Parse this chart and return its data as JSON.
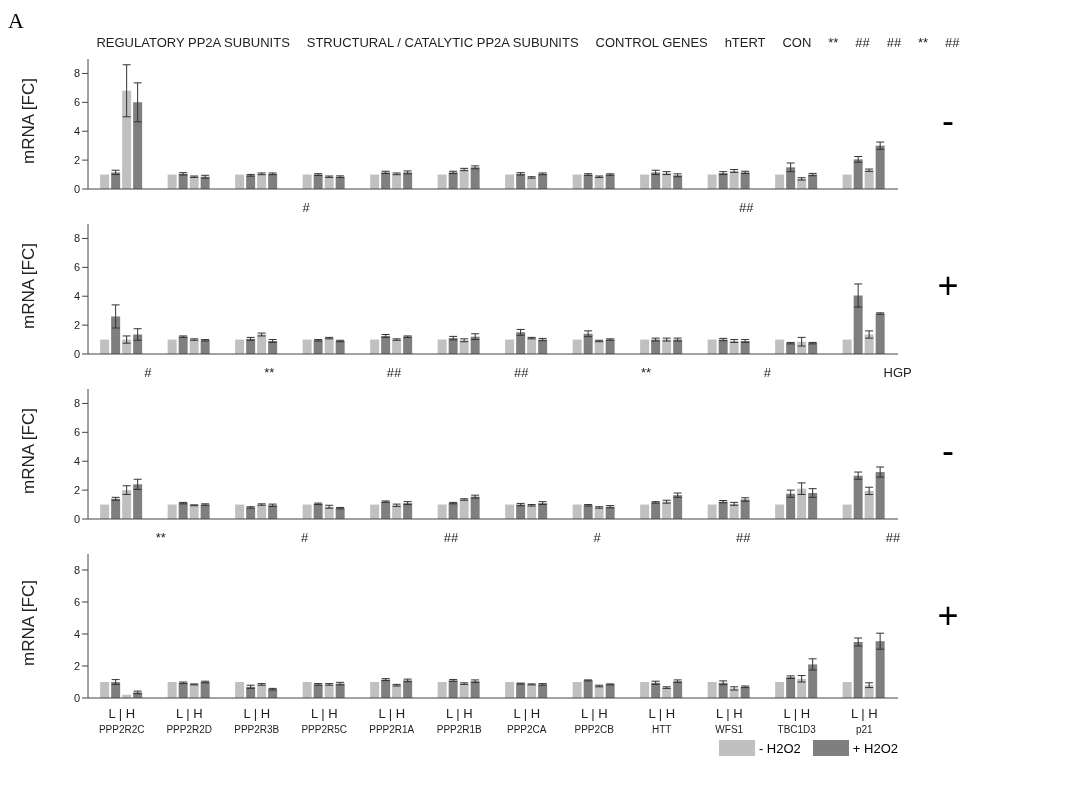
{
  "chart_data": [
    {
      "type": "bar",
      "title": "A",
      "ylabel": "mRNA [FC]",
      "y2label": "-",
      "ylim": [
        0,
        9
      ],
      "yticks": [
        0,
        2,
        4,
        6,
        8
      ],
      "grid": false,
      "categories": [
        null,
        null,
        null,
        null,
        null,
        null,
        null,
        null,
        null,
        null,
        null,
        null
      ],
      "series": [
        {
          "color": "#c0c0c0",
          "values": [
            1,
            1,
            1,
            1,
            1,
            1,
            1,
            1,
            1,
            1,
            1,
            1
          ]
        },
        {
          "color": "#7f7f7f",
          "values": [
            1.15,
            1.05,
            0.95,
            1.0,
            1.15,
            1.15,
            1.05,
            1.0,
            1.15,
            1.1,
            1.5,
            2.05
          ],
          "errors": [
            0.15,
            0.08,
            0.06,
            0.06,
            0.08,
            0.08,
            0.08,
            0.06,
            0.15,
            0.1,
            0.3,
            0.2
          ]
        },
        {
          "color": "#c0c0c0",
          "values": [
            6.8,
            0.85,
            1.05,
            0.85,
            1.05,
            1.35,
            0.8,
            0.85,
            1.1,
            1.25,
            0.7,
            1.3
          ],
          "errors": [
            1.8,
            0.05,
            0.06,
            0.05,
            0.06,
            0.08,
            0.05,
            0.05,
            0.1,
            0.1,
            0.08,
            0.08
          ]
        },
        {
          "color": "#7f7f7f",
          "values": [
            6.0,
            0.85,
            1.05,
            0.85,
            1.15,
            1.5,
            1.05,
            1.0,
            0.95,
            1.15,
            1.0,
            3.0
          ],
          "errors": [
            1.35,
            0.1,
            0.06,
            0.06,
            0.1,
            0.1,
            0.06,
            0.05,
            0.1,
            0.08,
            0.08,
            0.25
          ]
        }
      ],
      "annotations": [
        "REGULATORY PP2A SUBUNITS",
        "STRUCTURAL / CATALYTIC PP2A SUBUNITS",
        "CONTROL GENES",
        "hTERT",
        "CON",
        "**",
        "##",
        "##",
        "**",
        "##"
      ]
    },
    {
      "type": "bar",
      "ylabel": "mRNA [FC]",
      "y2label": "+",
      "ylim": [
        0,
        9
      ],
      "yticks": [
        0,
        2,
        4,
        6,
        8
      ],
      "grid": false,
      "categories": [
        null,
        null,
        null,
        null,
        null,
        null,
        null,
        null,
        null,
        null,
        null,
        null
      ],
      "series": [
        {
          "color": "#c0c0c0",
          "values": [
            1,
            1,
            1,
            1,
            1,
            1,
            1,
            1,
            1,
            1,
            1,
            1
          ]
        },
        {
          "color": "#7f7f7f",
          "values": [
            2.6,
            1.2,
            1.05,
            0.95,
            1.25,
            1.1,
            1.5,
            1.4,
            1.0,
            1.0,
            0.75,
            4.05
          ],
          "errors": [
            0.8,
            0.05,
            0.1,
            0.05,
            0.1,
            0.12,
            0.2,
            0.2,
            0.1,
            0.08,
            0.05,
            0.8
          ]
        },
        {
          "color": "#c0c0c0",
          "values": [
            1.0,
            1.0,
            1.35,
            1.1,
            1.0,
            0.95,
            1.1,
            0.9,
            1.0,
            0.9,
            0.85,
            1.35
          ],
          "errors": [
            0.25,
            0.05,
            0.1,
            0.05,
            0.05,
            0.1,
            0.05,
            0.05,
            0.1,
            0.1,
            0.3,
            0.25
          ]
        },
        {
          "color": "#7f7f7f",
          "values": [
            1.35,
            0.95,
            0.9,
            0.9,
            1.2,
            1.2,
            1.0,
            1.0,
            1.0,
            0.9,
            0.75,
            2.8
          ],
          "errors": [
            0.4,
            0.05,
            0.1,
            0.05,
            0.05,
            0.2,
            0.08,
            0.05,
            0.1,
            0.1,
            0.05,
            0.05
          ]
        }
      ],
      "annotations": [
        "#",
        "##"
      ]
    },
    {
      "type": "bar",
      "ylabel": "mRNA [FC]",
      "y2label": "-",
      "ylim": [
        0,
        9
      ],
      "yticks": [
        0,
        2,
        4,
        6,
        8
      ],
      "grid": false,
      "categories": [
        null,
        null,
        null,
        null,
        null,
        null,
        null,
        null,
        null,
        null,
        null,
        null
      ],
      "series": [
        {
          "color": "#c0c0c0",
          "values": [
            1,
            1,
            1,
            1,
            1,
            1,
            1,
            1,
            1,
            1,
            1,
            1
          ]
        },
        {
          "color": "#7f7f7f",
          "values": [
            1.4,
            1.1,
            0.8,
            1.05,
            1.2,
            1.1,
            1.0,
            0.95,
            1.15,
            1.2,
            1.75,
            3.0
          ],
          "errors": [
            0.1,
            0.05,
            0.05,
            0.05,
            0.05,
            0.05,
            0.08,
            0.05,
            0.05,
            0.08,
            0.25,
            0.25
          ]
        },
        {
          "color": "#c0c0c0",
          "values": [
            2.0,
            0.95,
            1.0,
            0.85,
            0.95,
            1.35,
            0.95,
            0.8,
            1.2,
            1.05,
            2.1,
            1.95
          ],
          "errors": [
            0.3,
            0.03,
            0.05,
            0.1,
            0.08,
            0.05,
            0.05,
            0.05,
            0.1,
            0.1,
            0.4,
            0.25
          ]
        },
        {
          "color": "#7f7f7f",
          "values": [
            2.4,
            1.0,
            0.95,
            0.75,
            1.1,
            1.55,
            1.1,
            0.85,
            1.65,
            1.35,
            1.8,
            3.25
          ],
          "errors": [
            0.35,
            0.05,
            0.08,
            0.05,
            0.1,
            0.1,
            0.1,
            0.08,
            0.15,
            0.12,
            0.3,
            0.35
          ]
        }
      ],
      "annotations": [
        "#",
        "**",
        "##",
        "##",
        "**",
        "#",
        "HGP"
      ]
    },
    {
      "type": "bar",
      "ylabel": "mRNA [FC]",
      "y2label": "+",
      "xlabel": "L | H",
      "ylim": [
        0,
        9
      ],
      "yticks": [
        0,
        2,
        4,
        6,
        8
      ],
      "grid": false,
      "legend": "bottom right",
      "categories": [
        "PPP2R2C",
        "PPP2R2D",
        "PPP2R3B",
        "PPP2R5C",
        "PPP2R1A",
        "PPP2R1B",
        "PPP2CA",
        "PPP2CB",
        "HTT",
        "WFS1",
        "TBC1D3",
        "p21"
      ],
      "series": [
        {
          "name": "- H2O2",
          "color": "#c0c0c0",
          "values": [
            1,
            1,
            1,
            1,
            1,
            1,
            1,
            1,
            1,
            1,
            1,
            1
          ]
        },
        {
          "name": "+ H2O2",
          "color": "#7f7f7f",
          "values": [
            1.0,
            0.95,
            0.7,
            0.85,
            1.15,
            1.1,
            0.9,
            1.1,
            0.95,
            0.95,
            1.3,
            3.5
          ],
          "errors": [
            0.15,
            0.05,
            0.1,
            0.05,
            0.06,
            0.06,
            0.03,
            0.03,
            0.1,
            0.12,
            0.08,
            0.25
          ]
        },
        {
          "color": "#c0c0c0",
          "values": [
            0.2,
            0.85,
            0.85,
            0.85,
            0.8,
            0.9,
            0.85,
            0.75,
            0.65,
            0.6,
            1.2,
            0.8
          ],
          "errors": [
            null,
            0.03,
            0.05,
            0.05,
            0.05,
            0.05,
            0.03,
            0.05,
            0.05,
            0.1,
            0.2,
            0.15
          ]
        },
        {
          "color": "#7f7f7f",
          "values": [
            0.35,
            1.0,
            0.55,
            0.9,
            1.1,
            1.05,
            0.85,
            0.85,
            1.05,
            0.7,
            2.1,
            3.55
          ],
          "errors": [
            0.08,
            0.05,
            0.05,
            0.08,
            0.08,
            0.08,
            0.05,
            0.03,
            0.08,
            0.05,
            0.35,
            0.5
          ]
        }
      ],
      "annotations": [
        "**",
        "#",
        "##",
        "#",
        "##",
        "##"
      ]
    }
  ]
}
